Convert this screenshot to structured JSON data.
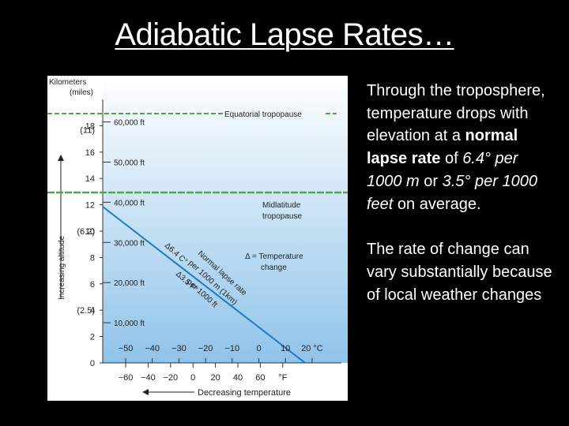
{
  "slide": {
    "title": "Adiabatic Lapse Rates…"
  },
  "figure": {
    "left_axis_title_line1": "Kilometers",
    "left_axis_title_line2": "(miles)",
    "vertical_axis_label": "Increasing altitude",
    "km_ticks": [
      "0",
      "2",
      "4",
      "6",
      "8",
      "10",
      "12",
      "14",
      "16",
      "18"
    ],
    "mile_ticks": [
      "(2.5)",
      "(6.2)",
      "(11)"
    ],
    "feet_labels": [
      "10,000 ft",
      "20,000 ft",
      "30,000 ft",
      "40,000 ft",
      "50,000 ft",
      "60,000 ft"
    ],
    "equatorial_tropopause": "Equatorial tropopause",
    "midlatitude_tropopause_line1": "Midlatitude",
    "midlatitude_tropopause_line2": "tropopause",
    "delta_legend_line1": "Δ = Temperature",
    "delta_legend_line2": "change",
    "lapse_label_line1": "Normal lapse rate",
    "lapse_label_line2": "per 1000 m (1km)",
    "lapse_label_line3": "per 1000 ft",
    "delta_c": "Δ6.4 C°",
    "delta_f": "Δ3.5 F°",
    "celsius_ticks": [
      "−50",
      "−40",
      "−30",
      "−20",
      "−10",
      "0",
      "10",
      "20 °C"
    ],
    "fahrenheit_ticks": [
      "−60",
      "−40",
      "−20",
      "0",
      "20",
      "40",
      "60",
      "°F"
    ],
    "bottom_axis_label": "Decreasing temperature",
    "colors": {
      "sky_top": "#ffffff",
      "sky_bottom": "#8fc3ea",
      "tropopause_green": "#4ea64a",
      "lapse_line": "#1e7ac2"
    }
  },
  "text": {
    "p1_a": "Through the troposphere, temperature drops with elevation at a ",
    "p1_bold": "normal lapse rate",
    "p1_b": " of ",
    "p1_italic1": "6.4° per 1000 m",
    "p1_c": " or ",
    "p1_italic2": "3.5° per 1000 feet",
    "p1_d": " on average.",
    "p2": "The rate of change can vary substantially because of local weather changes"
  }
}
